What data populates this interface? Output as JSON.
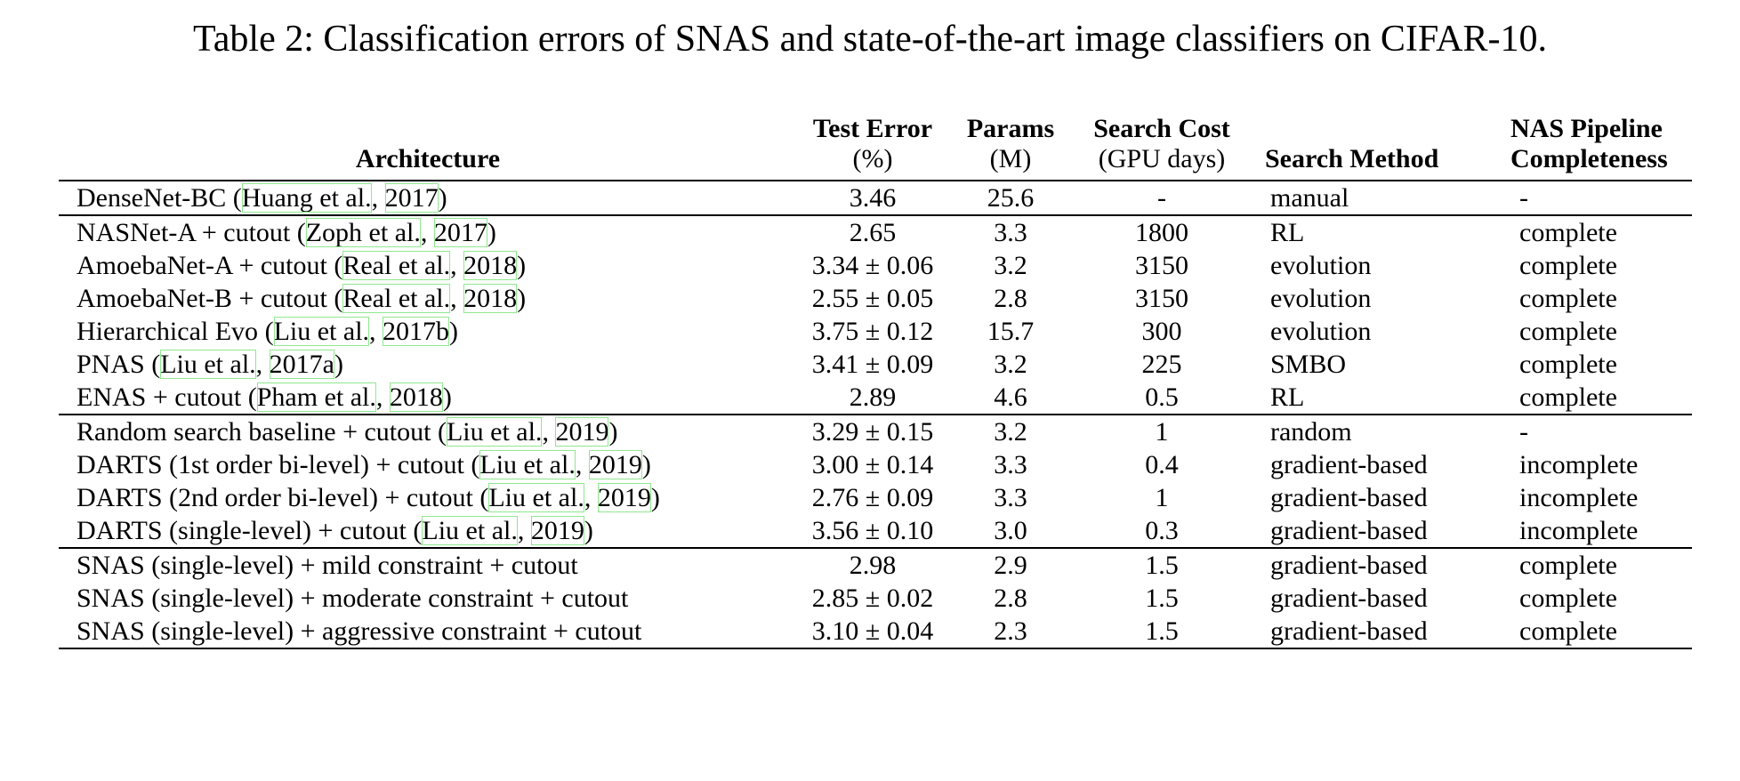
{
  "caption": "Table 2: Classification errors of SNAS and state-of-the-art image classifiers on CIFAR-10.",
  "headers": {
    "architecture": "Architecture",
    "test_error": "Test Error",
    "test_error_unit": "(%)",
    "params": "Params",
    "params_unit": "(M)",
    "search_cost": "Search Cost",
    "search_cost_unit": "(GPU days)",
    "search_method": "Search Method",
    "completeness_line1": "NAS Pipeline",
    "completeness_line2": "Completeness"
  },
  "groups": [
    [
      {
        "name": "DenseNet-BC ",
        "cite_author": "Huang et al.",
        "cite_year": "2017",
        "error": "3.46",
        "params": "25.6",
        "cost": "-",
        "method": "manual",
        "completeness": "-"
      }
    ],
    [
      {
        "name": "NASNet-A + cutout ",
        "cite_author": "Zoph et al.",
        "cite_year": "2017",
        "error": "2.65",
        "params": "3.3",
        "cost": "1800",
        "method": "RL",
        "completeness": "complete"
      },
      {
        "name": "AmoebaNet-A + cutout ",
        "cite_author": "Real et al.",
        "cite_year": "2018",
        "error": "3.34 ± 0.06",
        "params": "3.2",
        "cost": "3150",
        "method": "evolution",
        "completeness": "complete"
      },
      {
        "name": "AmoebaNet-B + cutout ",
        "cite_author": "Real et al.",
        "cite_year": "2018",
        "error": "2.55 ± 0.05",
        "params": "2.8",
        "cost": "3150",
        "method": "evolution",
        "completeness": "complete"
      },
      {
        "name": "Hierarchical Evo ",
        "cite_author": "Liu et al.",
        "cite_year": "2017b",
        "error": "3.75 ± 0.12",
        "params": "15.7",
        "cost": "300",
        "method": "evolution",
        "completeness": "complete"
      },
      {
        "name": "PNAS ",
        "cite_author": "Liu et al.",
        "cite_year": "2017a",
        "error": "3.41 ± 0.09",
        "params": "3.2",
        "cost": "225",
        "method": "SMBO",
        "completeness": "complete"
      },
      {
        "name": "ENAS + cutout ",
        "cite_author": "Pham et al.",
        "cite_year": "2018",
        "error": "2.89",
        "params": "4.6",
        "cost": "0.5",
        "method": "RL",
        "completeness": "complete"
      }
    ],
    [
      {
        "name": "Random search baseline + cutout ",
        "cite_author": "Liu et al.",
        "cite_year": "2019",
        "error": "3.29 ± 0.15",
        "params": "3.2",
        "cost": "1",
        "method": "random",
        "completeness": "-"
      },
      {
        "name": "DARTS (1st order bi-level) + cutout ",
        "cite_author": "Liu et al.",
        "cite_year": "2019",
        "error": "3.00 ± 0.14",
        "params": "3.3",
        "cost": "0.4",
        "method": "gradient-based",
        "completeness": "incomplete"
      },
      {
        "name": "DARTS (2nd order bi-level) + cutout ",
        "cite_author": "Liu et al.",
        "cite_year": "2019",
        "error": "2.76 ± 0.09",
        "params": "3.3",
        "cost": "1",
        "method": "gradient-based",
        "completeness": "incomplete"
      },
      {
        "name": "DARTS (single-level) + cutout ",
        "cite_author": "Liu et al.",
        "cite_year": "2019",
        "error": "3.56 ± 0.10",
        "params": "3.0",
        "cost": "0.3",
        "method": "gradient-based",
        "completeness": "incomplete"
      }
    ],
    [
      {
        "name": "SNAS (single-level) + mild constraint + cutout",
        "cite_author": "",
        "cite_year": "",
        "error": "2.98",
        "params": "2.9",
        "cost": "1.5",
        "method": "gradient-based",
        "completeness": "complete"
      },
      {
        "name": "SNAS (single-level) + moderate constraint + cutout",
        "cite_author": "",
        "cite_year": "",
        "error": "2.85 ± 0.02",
        "params": "2.8",
        "cost": "1.5",
        "method": "gradient-based",
        "completeness": "complete"
      },
      {
        "name": "SNAS (single-level) + aggressive constraint + cutout",
        "cite_author": "",
        "cite_year": "",
        "error": "3.10 ± 0.04",
        "params": "2.3",
        "cost": "1.5",
        "method": "gradient-based",
        "completeness": "complete"
      }
    ]
  ]
}
